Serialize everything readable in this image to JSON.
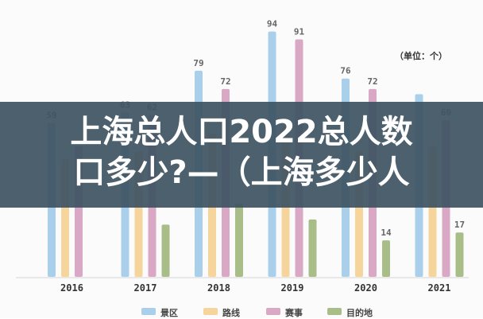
{
  "chart_data": {
    "type": "bar",
    "categories": [
      "2016",
      "2017",
      "2018",
      "2019",
      "2020",
      "2021"
    ],
    "series": [
      {
        "name": "景区",
        "color": "#a9cfea",
        "values": [
          59,
          63,
          79,
          94,
          76,
          70
        ]
      },
      {
        "name": "路线",
        "color": "#f5d59c",
        "values": [
          45,
          48,
          55,
          58,
          48,
          50
        ]
      },
      {
        "name": "赛事",
        "color": "#d9a8c4",
        "values": [
          50,
          62,
          72,
          91,
          72,
          60
        ]
      },
      {
        "name": "目的地",
        "color": "#a9bd88",
        "values": [
          null,
          20,
          28,
          22,
          14,
          17
        ]
      }
    ],
    "data_labels": [
      [
        "59",
        "",
        "",
        ""
      ],
      [
        "63",
        "",
        "62",
        ""
      ],
      [
        "79",
        "",
        "72",
        ""
      ],
      [
        "94",
        "",
        "91",
        ""
      ],
      [
        "76",
        "",
        "72",
        "14"
      ],
      [
        "",
        "",
        "60",
        "17"
      ]
    ],
    "ylim": [
      0,
      100
    ],
    "grid": false,
    "legend_position": "bottom"
  },
  "unit_label": "（单位：个）",
  "overlay": {
    "line1": "上海总人口2022总人数",
    "line2": "口多少?—（上海多少人"
  }
}
